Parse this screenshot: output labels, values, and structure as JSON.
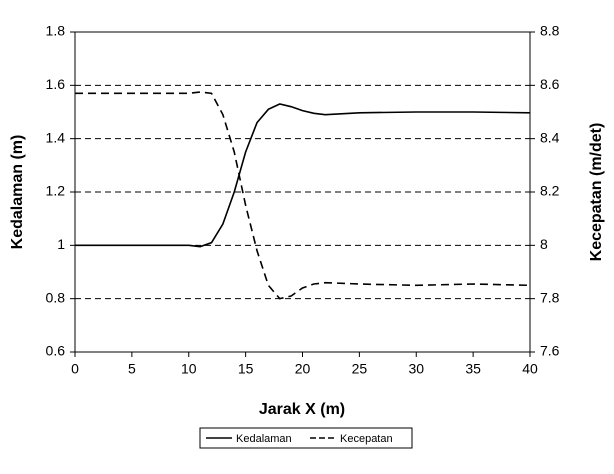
{
  "chart_data": {
    "type": "line",
    "xlabel": "Jarak X (m)",
    "ylabel": "Kedalaman (m)",
    "y2label": "Kecepatan (m/det)",
    "x": [
      0,
      5,
      10,
      11,
      12,
      13,
      14,
      15,
      16,
      17,
      18,
      19,
      20,
      21,
      22,
      25,
      30,
      35,
      40
    ],
    "series": [
      {
        "name": "Kedalaman",
        "color": "#000000",
        "linestyle": "solid",
        "values": [
          1,
          1,
          1,
          0.995,
          1.01,
          1.08,
          1.2,
          1.35,
          1.46,
          1.51,
          1.53,
          1.52,
          1.505,
          1.495,
          1.49,
          1.497,
          1.5,
          1.5,
          1.497
        ]
      },
      {
        "name": "Kecepatan",
        "color": "#000000",
        "linestyle": "dashed",
        "axis": "y2",
        "values": [
          8.57,
          8.57,
          8.57,
          8.575,
          8.57,
          8.49,
          8.35,
          8.15,
          7.98,
          7.85,
          7.8,
          7.81,
          7.84,
          7.855,
          7.86,
          7.855,
          7.85,
          7.855,
          7.85
        ]
      }
    ],
    "xlim": [
      0,
      40
    ],
    "xticks": [
      0,
      5,
      10,
      15,
      20,
      25,
      30,
      35,
      40
    ],
    "ylim": [
      0.6,
      1.8
    ],
    "yticks": [
      0.6,
      0.8,
      1,
      1.2,
      1.4,
      1.6,
      1.8
    ],
    "y2lim": [
      7.6,
      8.8
    ],
    "y2ticks": [
      7.6,
      7.8,
      8,
      8.2,
      8.4,
      8.6,
      8.8
    ],
    "grid": true,
    "legend": "bottom"
  }
}
